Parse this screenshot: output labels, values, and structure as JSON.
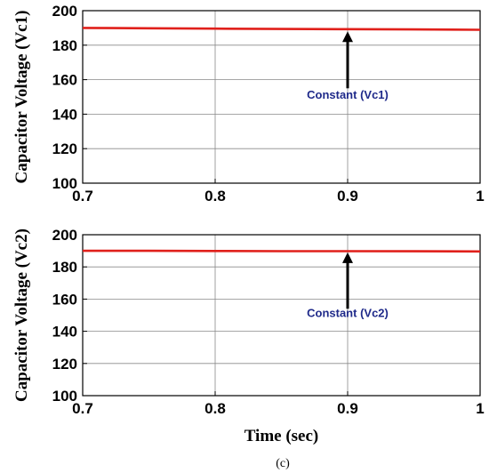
{
  "chart_data": [
    {
      "type": "line",
      "xlabel": "",
      "ylabel": "Capacitor Voltage (Vc1)",
      "xlim": [
        0.7,
        1
      ],
      "ylim": [
        100,
        200
      ],
      "xticks": [
        0.7,
        0.8,
        0.9,
        1
      ],
      "xtick_labels": [
        "0.7",
        "0.8",
        "0.9",
        "1"
      ],
      "yticks": [
        100,
        120,
        140,
        160,
        180,
        200
      ],
      "ytick_labels": [
        "100",
        "120",
        "140",
        "160",
        "180",
        "200"
      ],
      "grid": true,
      "series": [
        {
          "x": [
            0.7,
            0.75,
            0.8,
            0.85,
            0.9,
            0.95,
            1.0
          ],
          "y": [
            190,
            189.8,
            189.6,
            189.4,
            189.3,
            189.1,
            188.9
          ],
          "color": "#e0201b"
        }
      ],
      "annotations": [
        {
          "text": "Constant (Vc1)",
          "arrow_x": 0.9,
          "arrow_from_y": 155,
          "arrow_to_y": 188,
          "text_x": 0.9,
          "text_y": 149,
          "color": "#1f2a8a"
        }
      ]
    },
    {
      "type": "line",
      "xlabel": "Time (sec)",
      "ylabel": "Capacitor Voltage (Vc2)",
      "xlim": [
        0.7,
        1
      ],
      "ylim": [
        100,
        200
      ],
      "xticks": [
        0.7,
        0.8,
        0.9,
        1
      ],
      "xtick_labels": [
        "0.7",
        "0.8",
        "0.9",
        "1"
      ],
      "yticks": [
        100,
        120,
        140,
        160,
        180,
        200
      ],
      "ytick_labels": [
        "100",
        "120",
        "140",
        "160",
        "180",
        "200"
      ],
      "grid": true,
      "series": [
        {
          "x": [
            0.7,
            0.75,
            0.8,
            0.85,
            0.9,
            0.95,
            1.0
          ],
          "y": [
            190,
            190,
            189.9,
            189.8,
            189.8,
            189.7,
            189.6
          ],
          "color": "#e0201b"
        }
      ],
      "annotations": [
        {
          "text": "Constant (Vc2)",
          "arrow_x": 0.9,
          "arrow_from_y": 154,
          "arrow_to_y": 189,
          "text_x": 0.9,
          "text_y": 149,
          "color": "#1f2a8a"
        }
      ]
    }
  ],
  "caption": "(c)"
}
